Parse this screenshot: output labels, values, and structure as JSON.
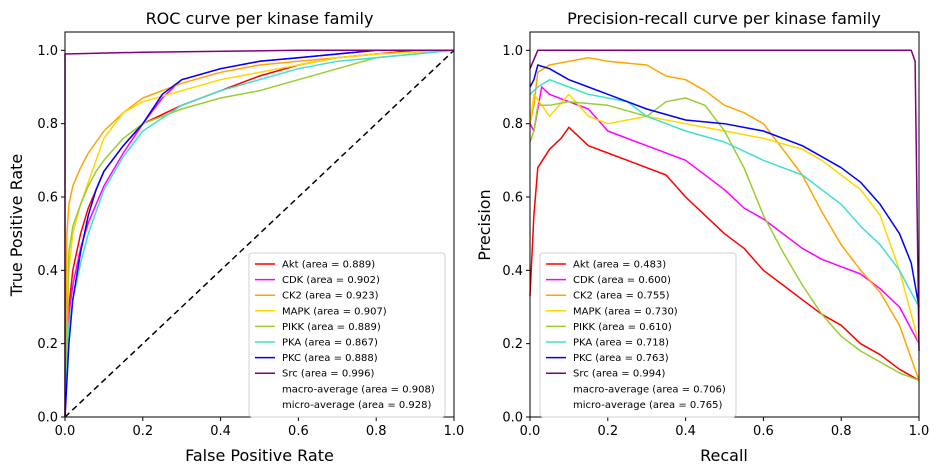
{
  "colors": {
    "Akt": "#ff0000",
    "CDK": "#ff00ff",
    "CK2": "#ffa500",
    "MAPK": "#ffd700",
    "PIKK": "#9acd32",
    "PKA": "#40e0d0",
    "PKC": "#0000ff",
    "Src": "#800080"
  },
  "chart_data": [
    {
      "type": "line",
      "title": "ROC curve per kinase family",
      "xlabel": "False Positive Rate",
      "ylabel": "True Positive Rate",
      "xlim": [
        0,
        1
      ],
      "ylim": [
        0,
        1.05
      ],
      "xticks": [
        "0.0",
        "0.2",
        "0.4",
        "0.6",
        "0.8",
        "1.0"
      ],
      "yticks": [
        "0.0",
        "0.2",
        "0.4",
        "0.6",
        "0.8",
        "1.0"
      ],
      "legend_position": "lower right",
      "diagonal": true,
      "series": [
        {
          "name": "Akt",
          "label": "Akt (area = 0.889)",
          "x": [
            0,
            0.01,
            0.02,
            0.04,
            0.06,
            0.08,
            0.1,
            0.15,
            0.2,
            0.3,
            0.4,
            0.5,
            0.6,
            0.7,
            0.8,
            0.9,
            1.0
          ],
          "y": [
            0,
            0.3,
            0.4,
            0.5,
            0.57,
            0.62,
            0.67,
            0.74,
            0.8,
            0.85,
            0.89,
            0.93,
            0.96,
            0.98,
            0.99,
            1.0,
            1.0
          ]
        },
        {
          "name": "CDK",
          "label": "CDK (area = 0.902)",
          "x": [
            0,
            0.01,
            0.02,
            0.04,
            0.06,
            0.08,
            0.1,
            0.15,
            0.2,
            0.25,
            0.3,
            0.4,
            0.5,
            0.6,
            0.7,
            0.8,
            1.0
          ],
          "y": [
            0,
            0.28,
            0.36,
            0.46,
            0.53,
            0.58,
            0.63,
            0.72,
            0.8,
            0.87,
            0.92,
            0.95,
            0.97,
            0.98,
            0.99,
            1.0,
            1.0
          ]
        },
        {
          "name": "CK2",
          "label": "CK2 (area = 0.923)",
          "x": [
            0,
            0.005,
            0.01,
            0.02,
            0.04,
            0.06,
            0.08,
            0.1,
            0.15,
            0.2,
            0.3,
            0.4,
            0.5,
            0.6,
            0.7,
            0.8,
            1.0
          ],
          "y": [
            0,
            0.5,
            0.58,
            0.63,
            0.68,
            0.72,
            0.75,
            0.78,
            0.83,
            0.87,
            0.91,
            0.94,
            0.96,
            0.97,
            0.98,
            0.99,
            1.0
          ]
        },
        {
          "name": "MAPK",
          "label": "MAPK (area = 0.907)",
          "x": [
            0,
            0.01,
            0.02,
            0.04,
            0.06,
            0.08,
            0.1,
            0.15,
            0.2,
            0.3,
            0.4,
            0.5,
            0.6,
            0.7,
            0.8,
            1.0
          ],
          "y": [
            0,
            0.4,
            0.5,
            0.58,
            0.64,
            0.7,
            0.76,
            0.83,
            0.86,
            0.89,
            0.92,
            0.94,
            0.96,
            0.98,
            0.99,
            1.0
          ]
        },
        {
          "name": "PIKK",
          "label": "PIKK (area = 0.889)",
          "x": [
            0,
            0.01,
            0.02,
            0.04,
            0.06,
            0.08,
            0.1,
            0.15,
            0.2,
            0.3,
            0.4,
            0.5,
            0.6,
            0.7,
            0.8,
            1.0
          ],
          "y": [
            0,
            0.45,
            0.52,
            0.58,
            0.63,
            0.67,
            0.7,
            0.76,
            0.8,
            0.84,
            0.87,
            0.89,
            0.92,
            0.95,
            0.98,
            1.0
          ]
        },
        {
          "name": "PKA",
          "label": "PKA (area = 0.867)",
          "x": [
            0,
            0.01,
            0.02,
            0.04,
            0.06,
            0.08,
            0.1,
            0.15,
            0.2,
            0.3,
            0.4,
            0.5,
            0.6,
            0.7,
            0.8,
            0.9,
            1.0
          ],
          "y": [
            0,
            0.25,
            0.32,
            0.42,
            0.5,
            0.56,
            0.62,
            0.71,
            0.78,
            0.85,
            0.89,
            0.92,
            0.95,
            0.97,
            0.98,
            0.99,
            1.0
          ]
        },
        {
          "name": "PKC",
          "label": "PKC (area = 0.888)",
          "x": [
            0,
            0.01,
            0.02,
            0.04,
            0.06,
            0.08,
            0.1,
            0.15,
            0.2,
            0.25,
            0.3,
            0.4,
            0.5,
            0.6,
            0.7,
            0.8,
            1.0
          ],
          "y": [
            0,
            0.2,
            0.32,
            0.45,
            0.55,
            0.62,
            0.67,
            0.74,
            0.8,
            0.88,
            0.92,
            0.95,
            0.97,
            0.98,
            0.99,
            1.0,
            1.0
          ]
        },
        {
          "name": "Src",
          "label": "Src (area = 0.996)",
          "x": [
            0,
            0.0,
            0.2,
            0.6,
            1.0
          ],
          "y": [
            0,
            0.99,
            0.995,
            1.0,
            1.0
          ]
        }
      ],
      "extra_legend": [
        "macro-average (area = 0.908)",
        "micro-average (area = 0.928)"
      ]
    },
    {
      "type": "line",
      "title": "Precision-recall curve per kinase family",
      "xlabel": "Recall",
      "ylabel": "Precision",
      "xlim": [
        0,
        1
      ],
      "ylim": [
        0,
        1.05
      ],
      "xticks": [
        "0.0",
        "0.2",
        "0.4",
        "0.6",
        "0.8",
        "1.0"
      ],
      "yticks": [
        "0.0",
        "0.2",
        "0.4",
        "0.6",
        "0.8",
        "1.0"
      ],
      "legend_position": "lower left",
      "diagonal": false,
      "series": [
        {
          "name": "Akt",
          "label": "Akt (area = 0.483)",
          "x": [
            0,
            0.01,
            0.02,
            0.05,
            0.08,
            0.1,
            0.15,
            0.2,
            0.25,
            0.3,
            0.35,
            0.4,
            0.45,
            0.5,
            0.55,
            0.6,
            0.65,
            0.7,
            0.75,
            0.8,
            0.85,
            0.9,
            0.95,
            1.0
          ],
          "y": [
            0.33,
            0.55,
            0.68,
            0.73,
            0.76,
            0.79,
            0.74,
            0.72,
            0.7,
            0.68,
            0.66,
            0.6,
            0.55,
            0.5,
            0.46,
            0.4,
            0.36,
            0.32,
            0.28,
            0.25,
            0.2,
            0.17,
            0.13,
            0.1
          ]
        },
        {
          "name": "CDK",
          "label": "CDK (area = 0.600)",
          "x": [
            0,
            0.01,
            0.03,
            0.05,
            0.1,
            0.15,
            0.2,
            0.3,
            0.4,
            0.5,
            0.55,
            0.6,
            0.65,
            0.7,
            0.75,
            0.8,
            0.85,
            0.9,
            0.95,
            1.0
          ],
          "y": [
            0.8,
            0.78,
            0.9,
            0.88,
            0.86,
            0.84,
            0.78,
            0.74,
            0.7,
            0.62,
            0.57,
            0.54,
            0.5,
            0.46,
            0.43,
            0.41,
            0.39,
            0.35,
            0.3,
            0.2
          ]
        },
        {
          "name": "CK2",
          "label": "CK2 (area = 0.755)",
          "x": [
            0,
            0.01,
            0.02,
            0.05,
            0.1,
            0.15,
            0.2,
            0.3,
            0.35,
            0.4,
            0.45,
            0.5,
            0.55,
            0.6,
            0.65,
            0.7,
            0.75,
            0.8,
            0.85,
            0.9,
            0.95,
            1.0
          ],
          "y": [
            0.8,
            0.85,
            0.94,
            0.96,
            0.97,
            0.98,
            0.97,
            0.96,
            0.93,
            0.92,
            0.89,
            0.85,
            0.83,
            0.8,
            0.73,
            0.66,
            0.56,
            0.47,
            0.4,
            0.34,
            0.25,
            0.1
          ]
        },
        {
          "name": "MAPK",
          "label": "MAPK (area = 0.730)",
          "x": [
            0,
            0.01,
            0.03,
            0.05,
            0.1,
            0.15,
            0.2,
            0.3,
            0.4,
            0.5,
            0.6,
            0.7,
            0.75,
            0.8,
            0.85,
            0.9,
            0.95,
            1.0
          ],
          "y": [
            0.8,
            0.88,
            0.85,
            0.82,
            0.88,
            0.82,
            0.8,
            0.82,
            0.8,
            0.78,
            0.76,
            0.73,
            0.7,
            0.66,
            0.62,
            0.55,
            0.4,
            0.2
          ]
        },
        {
          "name": "PIKK",
          "label": "PIKK (area = 0.610)",
          "x": [
            0,
            0.01,
            0.02,
            0.05,
            0.1,
            0.2,
            0.3,
            0.35,
            0.4,
            0.45,
            0.5,
            0.55,
            0.6,
            0.65,
            0.7,
            0.75,
            0.8,
            0.85,
            0.9,
            0.95,
            1.0
          ],
          "y": [
            0.75,
            0.78,
            0.85,
            0.85,
            0.86,
            0.85,
            0.82,
            0.86,
            0.87,
            0.85,
            0.78,
            0.68,
            0.55,
            0.45,
            0.36,
            0.28,
            0.22,
            0.18,
            0.15,
            0.12,
            0.1
          ]
        },
        {
          "name": "PKA",
          "label": "PKA (area = 0.718)",
          "x": [
            0,
            0.02,
            0.05,
            0.1,
            0.15,
            0.2,
            0.25,
            0.3,
            0.4,
            0.5,
            0.6,
            0.7,
            0.8,
            0.85,
            0.9,
            0.95,
            1.0
          ],
          "y": [
            0.88,
            0.9,
            0.92,
            0.9,
            0.88,
            0.87,
            0.86,
            0.82,
            0.78,
            0.75,
            0.7,
            0.66,
            0.58,
            0.52,
            0.47,
            0.4,
            0.3
          ]
        },
        {
          "name": "PKC",
          "label": "PKC (area = 0.763)",
          "x": [
            0,
            0.01,
            0.02,
            0.05,
            0.1,
            0.15,
            0.2,
            0.3,
            0.4,
            0.5,
            0.6,
            0.7,
            0.75,
            0.8,
            0.85,
            0.9,
            0.95,
            0.98,
            1.0
          ],
          "y": [
            0.9,
            0.92,
            0.96,
            0.95,
            0.92,
            0.9,
            0.88,
            0.84,
            0.81,
            0.8,
            0.78,
            0.74,
            0.71,
            0.68,
            0.64,
            0.58,
            0.5,
            0.42,
            0.3
          ]
        },
        {
          "name": "Src",
          "label": "Src (area = 0.994)",
          "x": [
            0,
            0.02,
            0.5,
            0.98,
            0.99,
            1.0
          ],
          "y": [
            0.95,
            1.0,
            1.0,
            1.0,
            0.97,
            0.18
          ]
        }
      ],
      "extra_legend": [
        "macro-average (area = 0.706)",
        "micro-average (area = 0.765)"
      ]
    }
  ]
}
